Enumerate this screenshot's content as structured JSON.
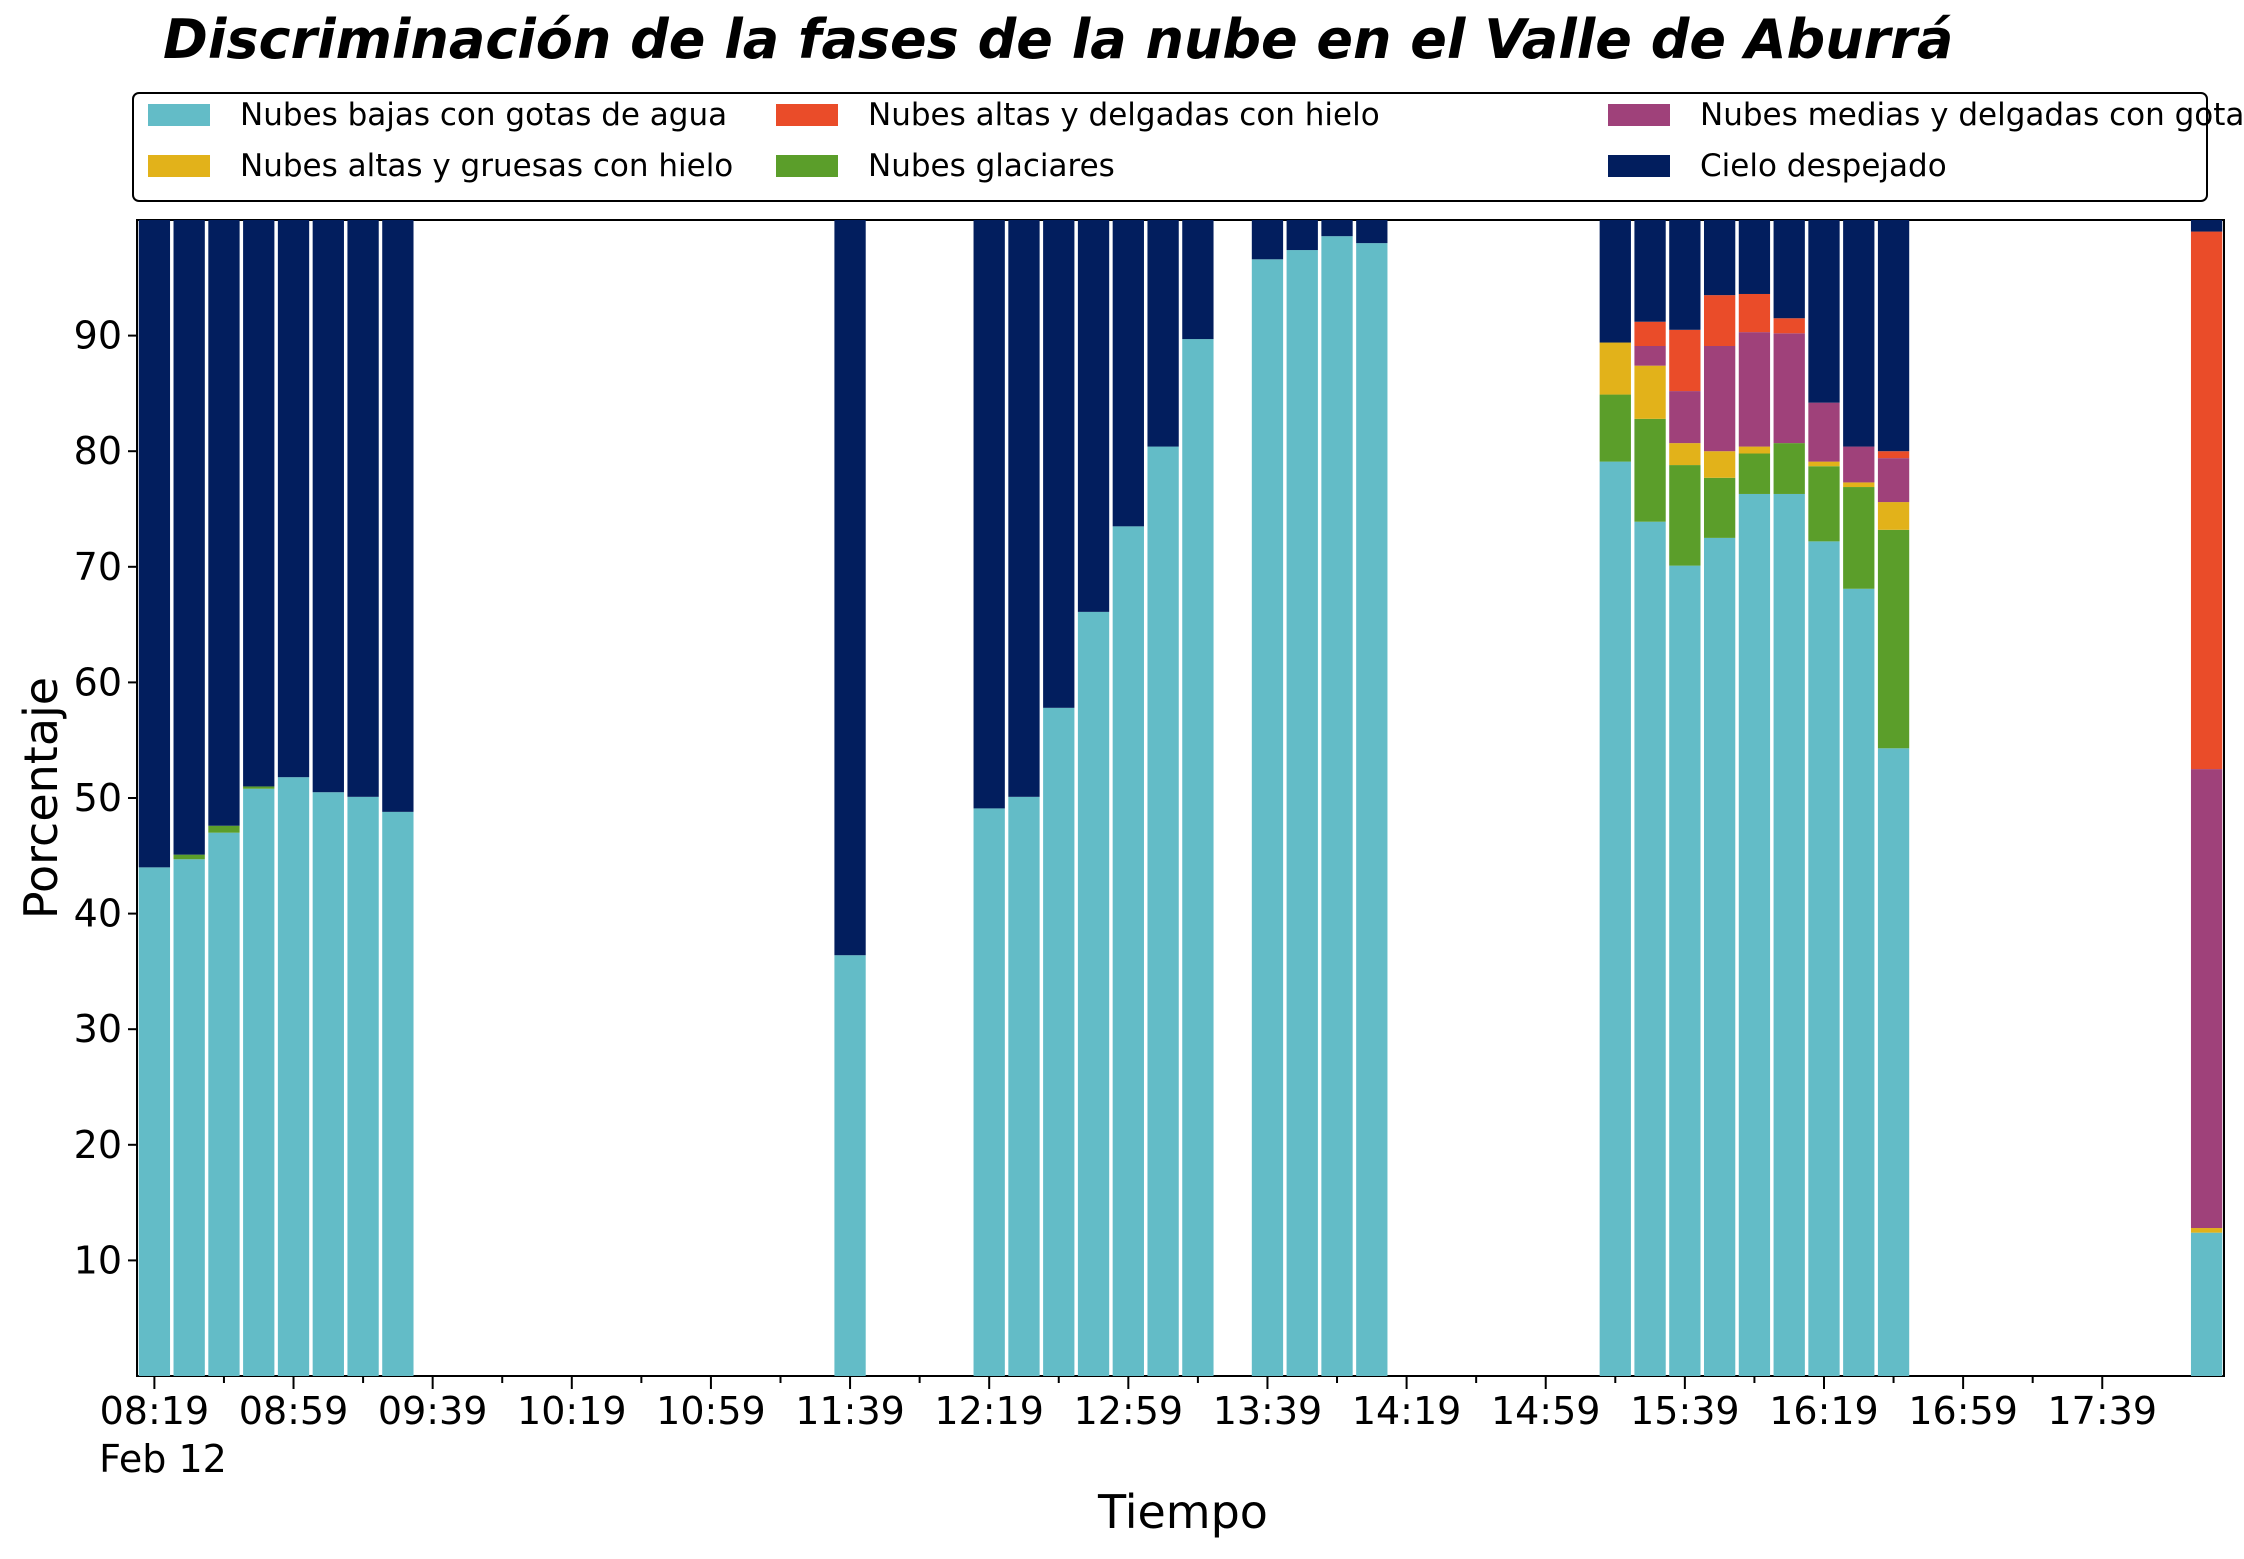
{
  "colors": {
    "Nubes bajas con gotas de agua": "#63bcc7",
    "Nubes glaciares": "#5b9e2a",
    "Nubes altas y gruesas con hielo": "#e2b21a",
    "Nubes medias y delgadas con gotas de agua": "#9f417a",
    "Nubes altas y delgadas con hielo": "#ea4c29",
    "Cielo despejado": "#021e5e"
  },
  "chart_data": {
    "type": "bar",
    "stacked": true,
    "title": "Discriminación de la fases de la nube en el Valle de Aburrá",
    "xlabel": "Tiempo",
    "ylabel": "Porcentaje",
    "date_label": "Feb 12",
    "ylim": [
      0,
      100
    ],
    "yticks": [
      10,
      20,
      30,
      40,
      50,
      60,
      70,
      80,
      90
    ],
    "xlim": [
      "08:14",
      "18:14"
    ],
    "xticks": [
      "08:19",
      "08:59",
      "09:39",
      "10:19",
      "10:59",
      "11:39",
      "12:19",
      "12:59",
      "13:39",
      "14:19",
      "14:59",
      "15:39",
      "16:19",
      "16:59",
      "17:39"
    ],
    "legend_position": "top",
    "legend": [
      "Nubes bajas con gotas de agua",
      "Nubes altas y gruesas con hielo",
      "Nubes altas y delgadas con hielo",
      "Nubes glaciares",
      "Nubes medias y delgadas con gotas de agua",
      "Cielo despejado"
    ],
    "categories": [
      "08:19",
      "08:29",
      "08:39",
      "08:49",
      "08:59",
      "09:09",
      "09:19",
      "09:29",
      "11:39",
      "12:19",
      "12:29",
      "12:39",
      "12:49",
      "12:59",
      "13:09",
      "13:19",
      "13:39",
      "13:49",
      "13:59",
      "14:09",
      "15:19",
      "15:29",
      "15:39",
      "15:49",
      "15:59",
      "16:09",
      "16:19",
      "16:29",
      "16:39",
      "18:09"
    ],
    "series": [
      {
        "name": "Nubes bajas con gotas de agua",
        "values": [
          44,
          44.7,
          47,
          50.8,
          51.8,
          50.5,
          50.1,
          48.8,
          36.4,
          49.1,
          50.1,
          57.8,
          66.1,
          73.5,
          80.4,
          89.7,
          96.6,
          97.4,
          98.6,
          98,
          79.1,
          73.9,
          70.1,
          72.5,
          76.3,
          76.3,
          72.2,
          68.1,
          54.3,
          12.4
        ]
      },
      {
        "name": "Nubes glaciares",
        "values": [
          0,
          0.4,
          0.6,
          0.2,
          0,
          0,
          0,
          0,
          0,
          0,
          0,
          0,
          0,
          0,
          0,
          0,
          0,
          0,
          0,
          0,
          5.8,
          8.9,
          8.7,
          5.2,
          3.5,
          4.4,
          6.5,
          8.8,
          18.9,
          0
        ]
      },
      {
        "name": "Nubes altas y gruesas con hielo",
        "values": [
          0,
          0,
          0,
          0,
          0,
          0,
          0,
          0,
          0,
          0,
          0,
          0,
          0,
          0,
          0,
          0,
          0,
          0,
          0,
          0,
          4.5,
          4.6,
          1.9,
          2.3,
          0.6,
          0,
          0.4,
          0.4,
          2.4,
          0.4
        ]
      },
      {
        "name": "Nubes medias y delgadas con gotas de agua",
        "values": [
          0,
          0,
          0,
          0,
          0,
          0,
          0,
          0,
          0,
          0,
          0,
          0,
          0,
          0,
          0,
          0,
          0,
          0,
          0,
          0,
          0,
          1.7,
          4.5,
          9.1,
          9.9,
          9.5,
          5.1,
          3.1,
          3.8,
          39.7
        ]
      },
      {
        "name": "Nubes altas y delgadas con hielo",
        "values": [
          0,
          0,
          0,
          0,
          0,
          0,
          0,
          0,
          0,
          0,
          0,
          0,
          0,
          0,
          0,
          0,
          0,
          0,
          0,
          0,
          0,
          2.1,
          5.3,
          4.4,
          3.3,
          1.3,
          0,
          0,
          0.6,
          46.5
        ]
      },
      {
        "name": "Cielo despejado",
        "values": [
          56,
          54.9,
          52.4,
          49,
          48.2,
          49.5,
          49.9,
          51.2,
          63.6,
          50.9,
          49.9,
          42.2,
          33.9,
          26.5,
          19.6,
          10.3,
          3.4,
          2.6,
          1.4,
          2,
          10.6,
          8.8,
          9.5,
          6.5,
          6.4,
          8.5,
          15.8,
          19.6,
          20,
          1
        ]
      }
    ]
  }
}
